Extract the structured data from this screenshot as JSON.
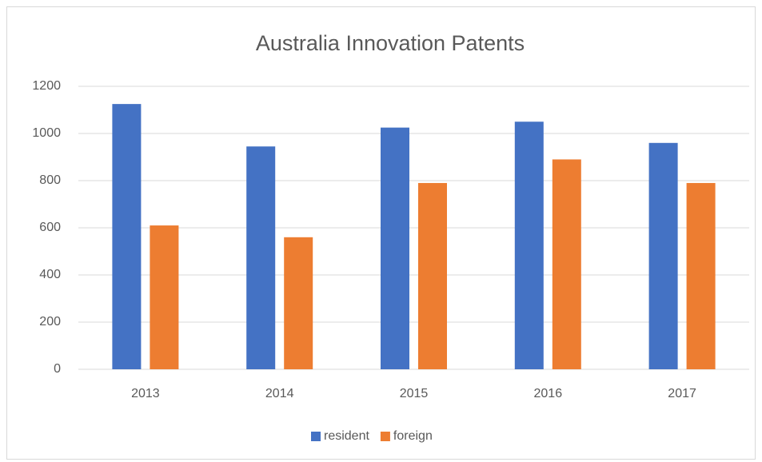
{
  "chart_data": {
    "type": "bar",
    "title": "Australia Innovation Patents",
    "categories": [
      "2013",
      "2014",
      "2015",
      "2016",
      "2017"
    ],
    "series": [
      {
        "name": "resident",
        "color": "#4472c4",
        "values": [
          1125,
          945,
          1025,
          1050,
          960
        ]
      },
      {
        "name": "foreign",
        "color": "#ed7d31",
        "values": [
          610,
          560,
          790,
          890,
          790
        ]
      }
    ],
    "ylim": [
      0,
      1200
    ],
    "yticks": [
      0,
      200,
      400,
      600,
      800,
      1000,
      1200
    ],
    "grid": true,
    "legend": "bottom"
  }
}
